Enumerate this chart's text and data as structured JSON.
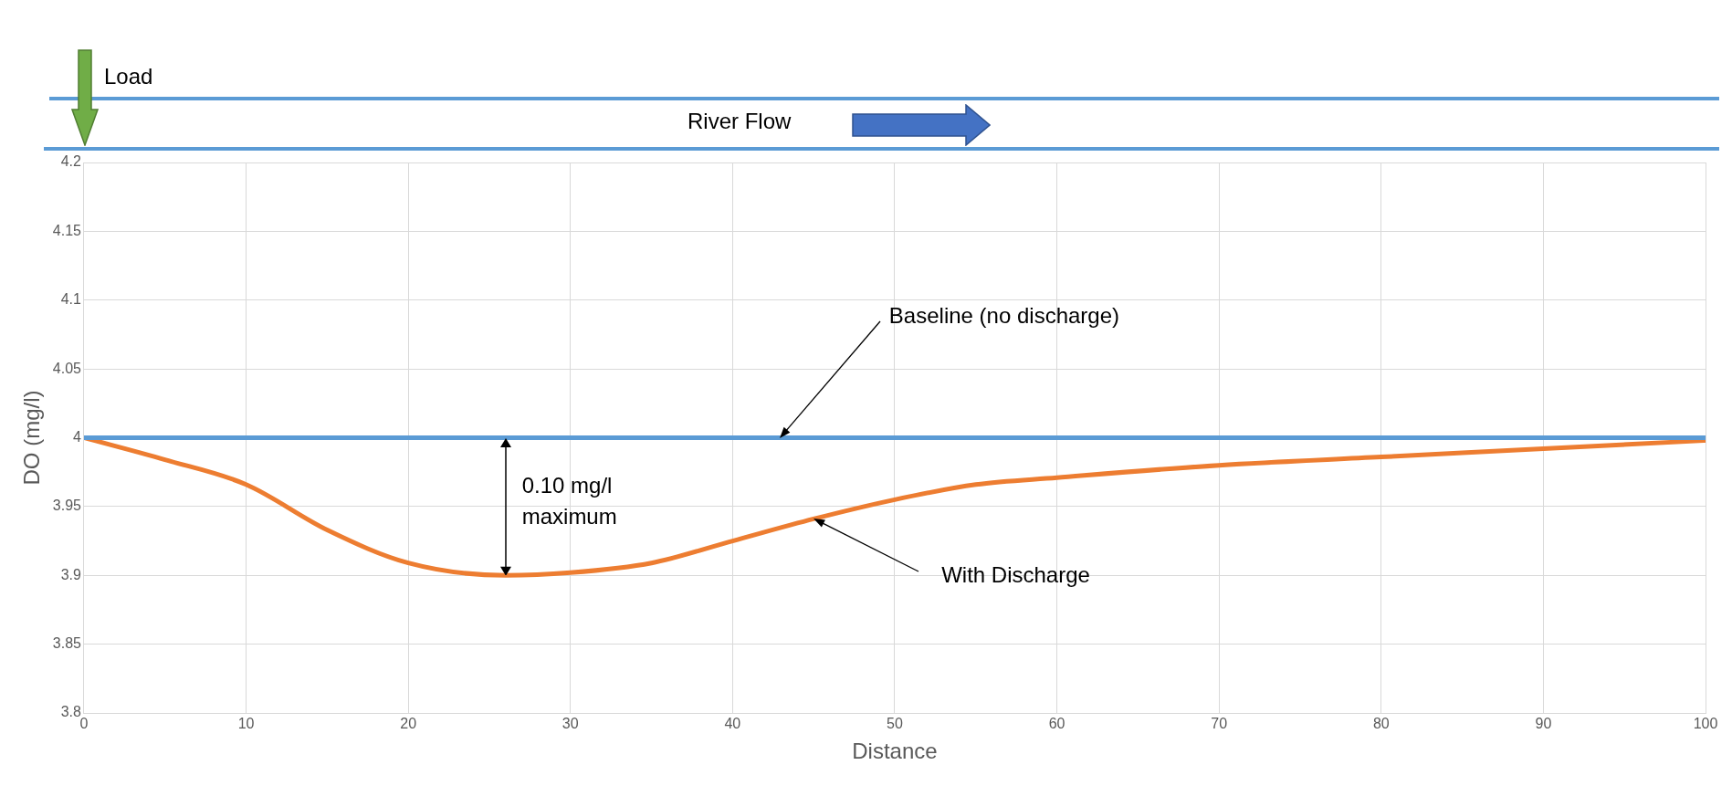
{
  "chart_data": {
    "type": "line",
    "xlabel": "Distance",
    "ylabel": "DO (mg/l)",
    "series": [
      {
        "color": "#5b9bd5",
        "x": [
          0,
          100
        ],
        "values": [
          4,
          4
        ]
      },
      {
        "color": "#ed7d31",
        "x": [
          0,
          5,
          10,
          15,
          20,
          26,
          30,
          35,
          40,
          45,
          50,
          55,
          60,
          70,
          80,
          90,
          100
        ],
        "values": [
          4.0,
          3.984,
          3.966,
          3.933,
          3.909,
          3.9,
          3.902,
          3.909,
          3.925,
          3.941,
          3.955,
          3.966,
          3.971,
          3.98,
          3.986,
          3.992,
          3.998
        ]
      }
    ],
    "xlim": [
      0,
      100
    ],
    "xticks": [
      0,
      10,
      20,
      30,
      40,
      50,
      60,
      70,
      80,
      90,
      100
    ],
    "ylim": [
      3.8,
      4.2
    ],
    "yticks": [
      3.8,
      3.85,
      3.9,
      3.95,
      4,
      4.05,
      4.1,
      4.15,
      4.2
    ],
    "grid": true,
    "marker": "none",
    "line_style": "solid",
    "annotations": [
      "Load",
      "River Flow",
      {
        "text": "Baseline (no discharge)",
        "x": 42.9,
        "y": 4.0
      },
      "0.10 mg/l maximum",
      {
        "text": "With Discharge",
        "x": 45,
        "y": 3.941
      }
    ]
  }
}
